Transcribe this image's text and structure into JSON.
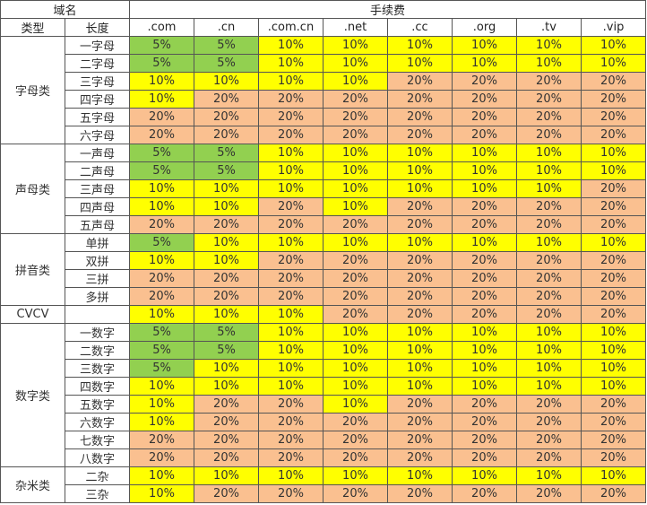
{
  "header": {
    "domain_label": "域名",
    "fee_label": "手续费",
    "type_label": "类型",
    "length_label": "长度",
    "tlds": [
      ".com",
      ".cn",
      ".com.cn",
      ".net",
      ".cc",
      ".org",
      ".tv",
      ".vip"
    ]
  },
  "colors": {
    "5%": "#92d050",
    "10%": "#ffff00",
    "20%": "#fac090",
    "border": "#555555"
  },
  "groups": [
    {
      "type": "字母类",
      "rows": [
        {
          "length": "一字母",
          "fees": [
            "5%",
            "5%",
            "10%",
            "10%",
            "10%",
            "10%",
            "10%",
            "10%"
          ]
        },
        {
          "length": "二字母",
          "fees": [
            "5%",
            "5%",
            "10%",
            "10%",
            "10%",
            "10%",
            "10%",
            "10%"
          ]
        },
        {
          "length": "三字母",
          "fees": [
            "10%",
            "10%",
            "10%",
            "10%",
            "20%",
            "20%",
            "20%",
            "20%"
          ]
        },
        {
          "length": "四字母",
          "fees": [
            "10%",
            "20%",
            "20%",
            "20%",
            "20%",
            "20%",
            "20%",
            "20%"
          ]
        },
        {
          "length": "五字母",
          "fees": [
            "20%",
            "20%",
            "20%",
            "20%",
            "20%",
            "20%",
            "20%",
            "20%"
          ]
        },
        {
          "length": "六字母",
          "fees": [
            "20%",
            "20%",
            "20%",
            "20%",
            "20%",
            "20%",
            "20%",
            "20%"
          ]
        }
      ]
    },
    {
      "type": "声母类",
      "rows": [
        {
          "length": "一声母",
          "fees": [
            "5%",
            "5%",
            "10%",
            "10%",
            "10%",
            "10%",
            "10%",
            "10%"
          ]
        },
        {
          "length": "二声母",
          "fees": [
            "5%",
            "5%",
            "10%",
            "10%",
            "10%",
            "10%",
            "10%",
            "10%"
          ]
        },
        {
          "length": "三声母",
          "fees": [
            "10%",
            "10%",
            "10%",
            "10%",
            "10%",
            "10%",
            "10%",
            "20%"
          ]
        },
        {
          "length": "四声母",
          "fees": [
            "10%",
            "10%",
            "20%",
            "10%",
            "20%",
            "20%",
            "20%",
            "20%"
          ]
        },
        {
          "length": "五声母",
          "fees": [
            "20%",
            "20%",
            "20%",
            "20%",
            "20%",
            "20%",
            "20%",
            "20%"
          ]
        }
      ]
    },
    {
      "type": "拼音类",
      "rows": [
        {
          "length": "单拼",
          "fees": [
            "5%",
            "10%",
            "10%",
            "10%",
            "10%",
            "10%",
            "10%",
            "10%"
          ]
        },
        {
          "length": "双拼",
          "fees": [
            "10%",
            "10%",
            "20%",
            "20%",
            "20%",
            "20%",
            "20%",
            "20%"
          ]
        },
        {
          "length": "三拼",
          "fees": [
            "20%",
            "20%",
            "20%",
            "20%",
            "20%",
            "20%",
            "20%",
            "20%"
          ]
        },
        {
          "length": "多拼",
          "fees": [
            "20%",
            "20%",
            "20%",
            "20%",
            "20%",
            "20%",
            "20%",
            "20%"
          ]
        }
      ]
    },
    {
      "type": "CVCV",
      "rows": [
        {
          "length": "",
          "fees": [
            "10%",
            "10%",
            "10%",
            "20%",
            "20%",
            "20%",
            "20%",
            "20%"
          ]
        }
      ]
    },
    {
      "type": "数字类",
      "rows": [
        {
          "length": "一数字",
          "fees": [
            "5%",
            "5%",
            "10%",
            "10%",
            "10%",
            "10%",
            "10%",
            "10%"
          ]
        },
        {
          "length": "二数字",
          "fees": [
            "5%",
            "5%",
            "10%",
            "10%",
            "10%",
            "10%",
            "10%",
            "10%"
          ]
        },
        {
          "length": "三数字",
          "fees": [
            "5%",
            "10%",
            "10%",
            "10%",
            "10%",
            "10%",
            "10%",
            "10%"
          ]
        },
        {
          "length": "四数字",
          "fees": [
            "10%",
            "10%",
            "10%",
            "10%",
            "10%",
            "10%",
            "10%",
            "10%"
          ]
        },
        {
          "length": "五数字",
          "fees": [
            "10%",
            "20%",
            "20%",
            "10%",
            "20%",
            "20%",
            "20%",
            "20%"
          ]
        },
        {
          "length": "六数字",
          "fees": [
            "10%",
            "20%",
            "20%",
            "20%",
            "20%",
            "20%",
            "20%",
            "20%"
          ]
        },
        {
          "length": "七数字",
          "fees": [
            "20%",
            "20%",
            "20%",
            "20%",
            "20%",
            "20%",
            "20%",
            "20%"
          ]
        },
        {
          "length": "八数字",
          "fees": [
            "20%",
            "20%",
            "20%",
            "20%",
            "20%",
            "20%",
            "20%",
            "20%"
          ]
        }
      ]
    },
    {
      "type": "杂米类",
      "rows": [
        {
          "length": "二杂",
          "fees": [
            "10%",
            "10%",
            "10%",
            "10%",
            "10%",
            "10%",
            "10%",
            "10%"
          ]
        },
        {
          "length": "三杂",
          "fees": [
            "10%",
            "20%",
            "20%",
            "20%",
            "20%",
            "20%",
            "20%",
            "20%"
          ]
        }
      ]
    }
  ]
}
